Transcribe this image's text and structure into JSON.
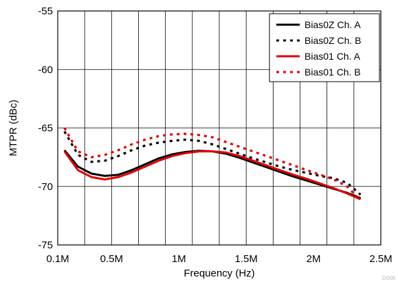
{
  "chart_data": {
    "type": "line",
    "xlabel": "Frequency (Hz)",
    "ylabel": "MTPR (dBc)",
    "xlim": [
      0.1,
      2.5
    ],
    "ylim": [
      -75,
      -55
    ],
    "grid": true,
    "legend_position": "top-right",
    "x_ticks": [
      {
        "value": 0.1,
        "label": "0.1M"
      },
      {
        "value": 0.5,
        "label": "0.5M"
      },
      {
        "value": 1.0,
        "label": "1M"
      },
      {
        "value": 1.5,
        "label": "1.5M"
      },
      {
        "value": 2.0,
        "label": "2M"
      },
      {
        "value": 2.5,
        "label": "2.5M"
      }
    ],
    "x_grid": [
      0.1,
      0.3,
      0.5,
      0.7,
      0.9,
      1.1,
      1.3,
      1.5,
      1.7,
      1.9,
      2.1,
      2.3,
      2.5
    ],
    "y_ticks": [
      {
        "value": -55,
        "label": "-55"
      },
      {
        "value": -60,
        "label": "-60"
      },
      {
        "value": -65,
        "label": "-65"
      },
      {
        "value": -70,
        "label": "-70"
      },
      {
        "value": -75,
        "label": "-75"
      }
    ],
    "y_grid": [
      -55,
      -60,
      -65,
      -70,
      -75
    ],
    "series": [
      {
        "name": "Bias0Z Ch. A",
        "color": "#000000",
        "style": "solid",
        "x": [
          0.15,
          0.25,
          0.35,
          0.45,
          0.55,
          0.65,
          0.75,
          0.85,
          0.95,
          1.05,
          1.15,
          1.25,
          1.35,
          1.45,
          1.55,
          1.65,
          1.75,
          1.85,
          1.95,
          2.05,
          2.15,
          2.25,
          2.35
        ],
        "values": [
          -66.9,
          -68.3,
          -68.9,
          -69.1,
          -69.0,
          -68.6,
          -68.1,
          -67.6,
          -67.25,
          -67.05,
          -66.95,
          -67.0,
          -67.2,
          -67.55,
          -67.95,
          -68.35,
          -68.75,
          -69.15,
          -69.5,
          -69.85,
          -70.2,
          -70.55,
          -71.0
        ]
      },
      {
        "name": "Bias0Z Ch. B",
        "color": "#000000",
        "style": "dotted",
        "x": [
          0.15,
          0.25,
          0.35,
          0.45,
          0.55,
          0.65,
          0.75,
          0.85,
          0.95,
          1.05,
          1.15,
          1.25,
          1.35,
          1.45,
          1.55,
          1.65,
          1.75,
          1.85,
          1.95,
          2.05,
          2.15,
          2.25,
          2.35
        ],
        "values": [
          -65.3,
          -67.3,
          -67.9,
          -67.8,
          -67.4,
          -66.9,
          -66.5,
          -66.25,
          -66.1,
          -66.0,
          -66.1,
          -66.4,
          -66.8,
          -67.2,
          -67.6,
          -67.95,
          -68.3,
          -68.6,
          -68.85,
          -69.1,
          -69.3,
          -69.7,
          -70.7
        ]
      },
      {
        "name": "Bias01 Ch. A",
        "color": "#e00000",
        "style": "solid",
        "x": [
          0.15,
          0.25,
          0.35,
          0.45,
          0.55,
          0.65,
          0.75,
          0.85,
          0.95,
          1.05,
          1.15,
          1.25,
          1.35,
          1.45,
          1.55,
          1.65,
          1.75,
          1.85,
          1.95,
          2.05,
          2.15,
          2.25,
          2.35
        ],
        "values": [
          -67.0,
          -68.6,
          -69.2,
          -69.4,
          -69.2,
          -68.8,
          -68.3,
          -67.8,
          -67.4,
          -67.15,
          -67.0,
          -67.0,
          -67.1,
          -67.4,
          -67.8,
          -68.2,
          -68.6,
          -69.0,
          -69.35,
          -69.75,
          -70.15,
          -70.6,
          -71.1
        ]
      },
      {
        "name": "Bias01 Ch. B",
        "color": "#e00000",
        "style": "dotted",
        "x": [
          0.15,
          0.25,
          0.35,
          0.45,
          0.55,
          0.65,
          0.75,
          0.85,
          0.95,
          1.05,
          1.15,
          1.25,
          1.35,
          1.45,
          1.55,
          1.65,
          1.75,
          1.85,
          1.95,
          2.05,
          2.15,
          2.25,
          2.35
        ],
        "values": [
          -65.0,
          -67.0,
          -67.5,
          -67.3,
          -66.9,
          -66.4,
          -66.0,
          -65.7,
          -65.55,
          -65.5,
          -65.6,
          -65.8,
          -66.2,
          -66.6,
          -67.0,
          -67.4,
          -67.8,
          -68.2,
          -68.6,
          -69.0,
          -69.4,
          -70.0,
          -71.2
        ]
      }
    ],
    "watermark": "D006"
  }
}
